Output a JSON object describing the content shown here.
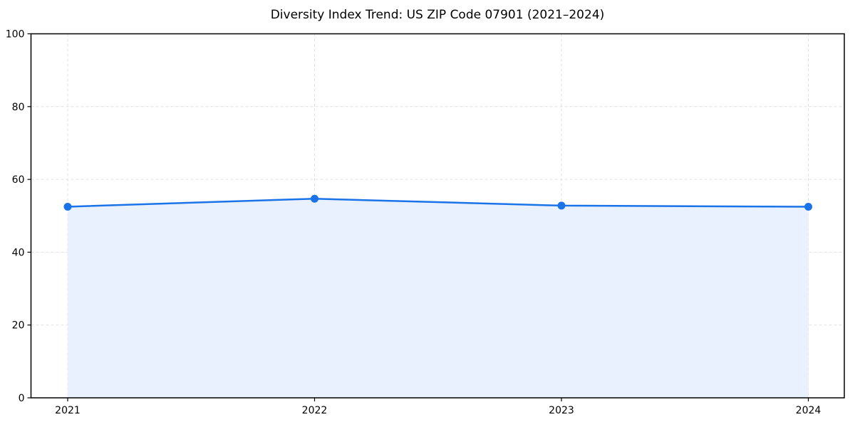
{
  "page": {
    "background_color": "#ffffff"
  },
  "chart_data": {
    "type": "area",
    "title": "Diversity Index Trend: US ZIP Code 07901 (2021–2024)",
    "x": [
      "2021",
      "2022",
      "2023",
      "2024"
    ],
    "values": [
      52.5,
      54.7,
      52.8,
      52.5
    ],
    "xlabel": "",
    "ylabel": "",
    "ylim": [
      0,
      100
    ],
    "yticks": [
      0,
      20,
      40,
      60,
      80,
      100
    ],
    "grid": "dashed-both-axes",
    "legend_position": "none",
    "line_color": "#1a73e8",
    "marker_color": "#1a73e8",
    "fill_color": "#e8f1fd",
    "grid_color": "#e2e2e2",
    "spine_color": "#000000",
    "tick_color": "#000000",
    "text_color": "#000000"
  }
}
